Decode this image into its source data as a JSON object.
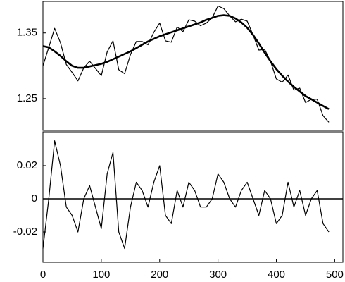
{
  "chart_data": [
    {
      "type": "line",
      "x": [
        0,
        10,
        20,
        30,
        40,
        50,
        60,
        70,
        80,
        90,
        100,
        110,
        120,
        130,
        140,
        150,
        160,
        170,
        180,
        190,
        200,
        210,
        220,
        230,
        240,
        250,
        260,
        270,
        280,
        290,
        300,
        310,
        320,
        330,
        340,
        350,
        360,
        370,
        380,
        390,
        400,
        410,
        420,
        430,
        440,
        450,
        460,
        470,
        480,
        490
      ],
      "series": [
        {
          "color": "#000000",
          "width": 1.2,
          "values": [
            1.3,
            1.328,
            1.357,
            1.335,
            1.302,
            1.29,
            1.277,
            1.297,
            1.307,
            1.296,
            1.285,
            1.321,
            1.338,
            1.294,
            1.288,
            1.317,
            1.337,
            1.337,
            1.332,
            1.351,
            1.365,
            1.338,
            1.336,
            1.359,
            1.352,
            1.37,
            1.368,
            1.361,
            1.365,
            1.373,
            1.391,
            1.387,
            1.376,
            1.367,
            1.371,
            1.368,
            1.347,
            1.324,
            1.325,
            1.307,
            1.28,
            1.275,
            1.286,
            1.263,
            1.266,
            1.244,
            1.249,
            1.249,
            1.224,
            1.214
          ]
        },
        {
          "color": "#000000",
          "width": 2.6,
          "values": [
            1.33,
            1.328,
            1.322,
            1.315,
            1.307,
            1.3,
            1.297,
            1.297,
            1.299,
            1.301,
            1.303,
            1.306,
            1.31,
            1.314,
            1.318,
            1.322,
            1.327,
            1.332,
            1.337,
            1.341,
            1.345,
            1.348,
            1.351,
            1.354,
            1.357,
            1.36,
            1.363,
            1.366,
            1.37,
            1.373,
            1.376,
            1.377,
            1.376,
            1.372,
            1.366,
            1.358,
            1.347,
            1.334,
            1.32,
            1.307,
            1.295,
            1.285,
            1.276,
            1.268,
            1.261,
            1.254,
            1.249,
            1.244,
            1.239,
            1.234
          ]
        }
      ],
      "xlim": [
        0,
        514
      ],
      "ylim": [
        1.2016,
        1.398
      ],
      "yticks": [
        1.25,
        1.35
      ]
    },
    {
      "type": "line",
      "x": [
        0,
        10,
        20,
        30,
        40,
        50,
        60,
        70,
        80,
        90,
        100,
        110,
        120,
        130,
        140,
        150,
        160,
        170,
        180,
        190,
        200,
        210,
        220,
        230,
        240,
        250,
        260,
        270,
        280,
        290,
        300,
        310,
        320,
        330,
        340,
        350,
        360,
        370,
        380,
        390,
        400,
        410,
        420,
        430,
        440,
        450,
        460,
        470,
        480,
        490
      ],
      "series": [
        {
          "color": "#000000",
          "width": 1.2,
          "values": [
            -0.03,
            0.0,
            0.035,
            0.02,
            -0.005,
            -0.01,
            -0.02,
            0.0,
            0.008,
            -0.005,
            -0.018,
            0.015,
            0.028,
            -0.02,
            -0.03,
            -0.005,
            0.01,
            0.005,
            -0.005,
            0.01,
            0.02,
            -0.01,
            -0.015,
            0.005,
            -0.005,
            0.01,
            0.005,
            -0.005,
            -0.005,
            0.0,
            0.015,
            0.01,
            0.0,
            -0.005,
            0.005,
            0.01,
            0.0,
            -0.01,
            0.005,
            0.0,
            -0.015,
            -0.01,
            0.01,
            -0.005,
            0.005,
            -0.01,
            0.0,
            0.005,
            -0.015,
            -0.02
          ]
        }
      ],
      "hline": 0,
      "xlim": [
        0,
        514
      ],
      "ylim": [
        -0.0383,
        0.0404
      ],
      "yticks": [
        -0.02,
        0,
        0.02
      ],
      "xticks": [
        0,
        100,
        200,
        300,
        400,
        500
      ]
    }
  ]
}
